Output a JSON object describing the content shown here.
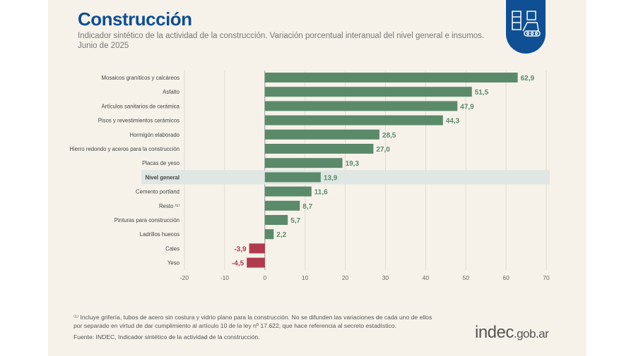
{
  "header": {
    "title": "Construcción",
    "subtitle": "Indicador sintético de la actividad de la construcción. Variación porcentual interanual del nivel general e insumos.",
    "date": "Junio de 2025",
    "icon": "construction-icon"
  },
  "chart_data": {
    "type": "bar",
    "orientation": "horizontal",
    "categories": [
      "Mosaicos graníticos y calcáreos",
      "Asfalto",
      "Artículos sanitarios de cerámica",
      "Pisos y revestimientos cerámicos",
      "Hormigón elaborado",
      "Hierro redondo y aceros para la construcción",
      "Placas de yeso",
      "Nivel general",
      "Cemento portland",
      "Resto ⁽¹⁾",
      "Pinturas para construcción",
      "Ladrillos huecos",
      "Cales",
      "Yeso"
    ],
    "values": [
      62.9,
      51.5,
      47.9,
      44.3,
      28.5,
      27.0,
      19.3,
      13.9,
      11.6,
      8.7,
      5.7,
      2.2,
      -3.9,
      -4.5
    ],
    "value_labels": [
      "62,9",
      "51,5",
      "47,9",
      "44,3",
      "28,5",
      "27,0",
      "19,3",
      "13,9",
      "11,6",
      "8,7",
      "5,7",
      "2,2",
      "-3,9",
      "-4,5"
    ],
    "highlight": "Nivel general",
    "xlim": [
      -20,
      70
    ],
    "xticks": [
      "-20",
      "-10",
      "0",
      "10",
      "20",
      "30",
      "40",
      "50",
      "60",
      "70"
    ],
    "grid": true,
    "colors": {
      "positive": "#5a8a6a",
      "negative": "#b03a4e",
      "highlight_band": "#dfe6e4"
    }
  },
  "footer": {
    "note": "⁽¹⁾ Incluye grifería, tubos de acero sin costura y vidrio plano para la construcción. No se difunden las variaciones de cada uno de ellos por separado en virtud de dar cumplimiento al artículo 10 de la ley  nº 17.622, que hace referencia al secreto estadístico.",
    "source": "Fuente: INDEC, Indicador sintético de la actividad de la construcción.",
    "logo_main": "indec",
    "logo_suffix": ".gob.ar"
  }
}
